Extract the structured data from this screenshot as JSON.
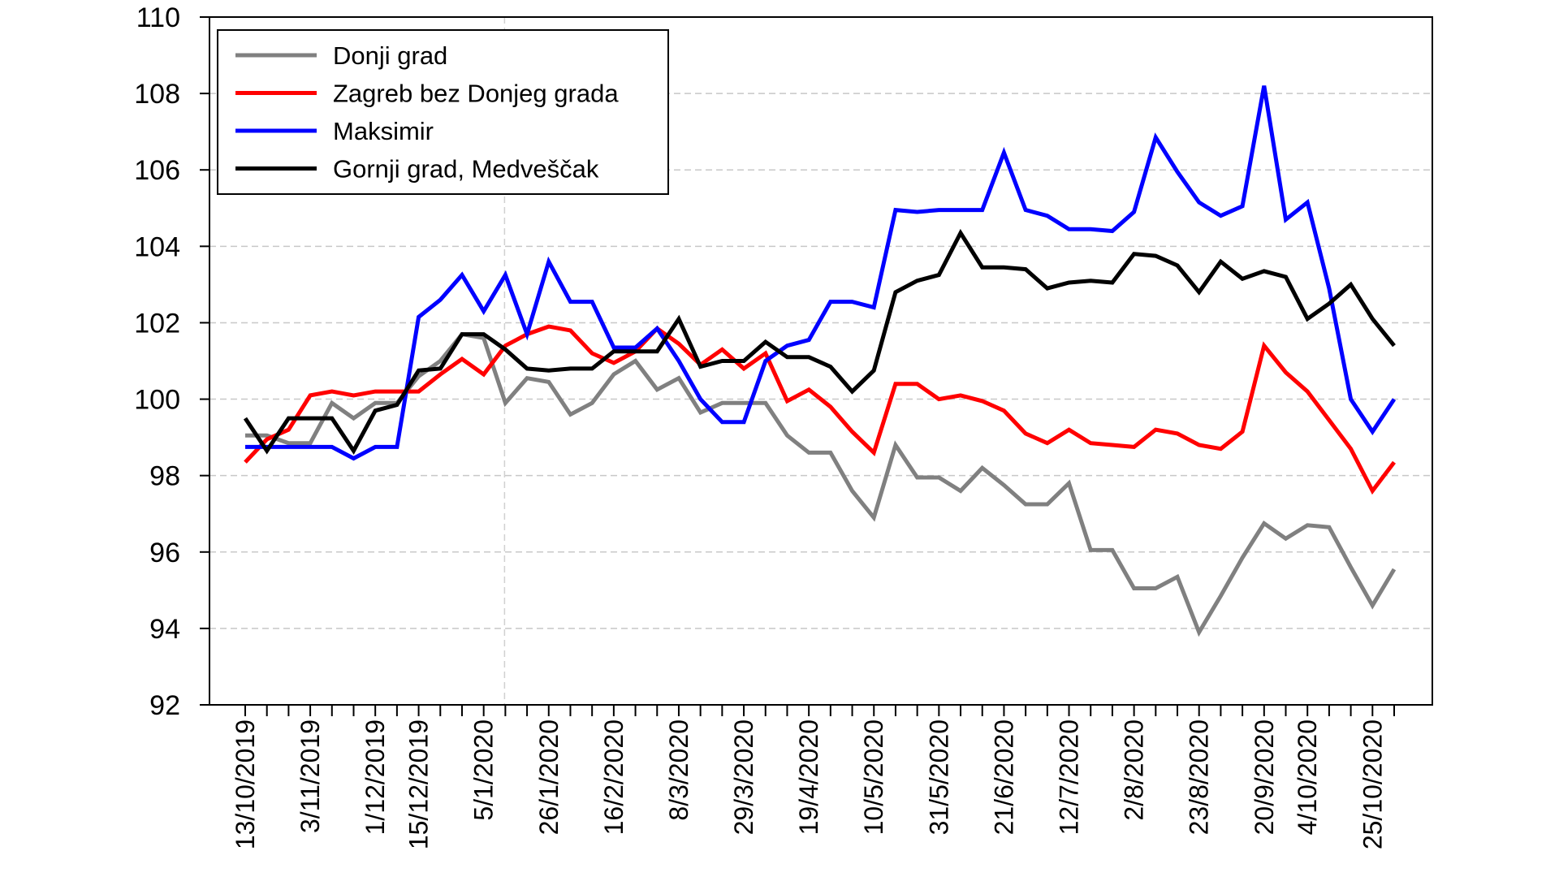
{
  "chart_data": {
    "type": "line",
    "title": "",
    "xlabel": "",
    "ylabel": "",
    "ylim": [
      92,
      110
    ],
    "yticks": [
      92,
      94,
      96,
      98,
      100,
      102,
      104,
      106,
      108,
      110
    ],
    "grid": "horizontal dashed",
    "legend_position": "top-left",
    "n_points": 54,
    "x_tick_labels": [
      {
        "index": 0,
        "label": "13/10/2019"
      },
      {
        "index": 3,
        "label": "3/11/2019"
      },
      {
        "index": 6,
        "label": "1/12/2019"
      },
      {
        "index": 8,
        "label": "15/12/2019"
      },
      {
        "index": 11,
        "label": "5/1/2020"
      },
      {
        "index": 14,
        "label": "26/1/2020"
      },
      {
        "index": 17,
        "label": "16/2/2020"
      },
      {
        "index": 20,
        "label": "8/3/2020"
      },
      {
        "index": 23,
        "label": "29/3/2020"
      },
      {
        "index": 26,
        "label": "19/4/2020"
      },
      {
        "index": 29,
        "label": "10/5/2020"
      },
      {
        "index": 32,
        "label": "31/5/2020"
      },
      {
        "index": 35,
        "label": "21/6/2020"
      },
      {
        "index": 38,
        "label": "12/7/2020"
      },
      {
        "index": 41,
        "label": "2/8/2020"
      },
      {
        "index": 44,
        "label": "23/8/2020"
      },
      {
        "index": 47,
        "label": "20/9/2020"
      },
      {
        "index": 49,
        "label": "4/10/2020"
      },
      {
        "index": 52,
        "label": "25/10/2020"
      }
    ],
    "series": [
      {
        "name": "Donji grad",
        "color": "#808080",
        "values": [
          99.05,
          99.05,
          98.85,
          98.85,
          99.9,
          99.5,
          99.9,
          99.9,
          100.6,
          101.0,
          101.7,
          101.6,
          99.9,
          100.55,
          100.45,
          99.6,
          99.9,
          100.65,
          101.0,
          100.25,
          100.55,
          99.65,
          99.9,
          99.9,
          99.9,
          99.05,
          98.6,
          98.6,
          97.6,
          96.9,
          98.8,
          97.95,
          97.95,
          97.6,
          98.2,
          97.75,
          97.25,
          97.25,
          97.8,
          96.05,
          96.05,
          95.05,
          95.05,
          95.35,
          93.9,
          94.85,
          95.85,
          96.75,
          96.35,
          96.7,
          96.65,
          95.6,
          94.6,
          95.55
        ]
      },
      {
        "name": "Zagreb bez Donjeg grada",
        "color": "#ff0000",
        "values": [
          98.35,
          98.95,
          99.2,
          100.1,
          100.2,
          100.1,
          100.2,
          100.2,
          100.2,
          100.65,
          101.05,
          100.65,
          101.4,
          101.7,
          101.9,
          101.8,
          101.2,
          100.95,
          101.25,
          101.85,
          101.45,
          100.9,
          101.3,
          100.8,
          101.2,
          99.95,
          100.25,
          99.8,
          99.15,
          98.6,
          100.4,
          100.4,
          100.0,
          100.1,
          99.95,
          99.7,
          99.1,
          98.85,
          99.2,
          98.85,
          98.8,
          98.75,
          99.2,
          99.1,
          98.8,
          98.7,
          99.15,
          101.4,
          100.7,
          100.2,
          99.45,
          98.7,
          97.6,
          98.35
        ]
      },
      {
        "name": "Maksimir",
        "color": "#0000ff",
        "values": [
          98.75,
          98.75,
          98.75,
          98.75,
          98.75,
          98.45,
          98.75,
          98.75,
          102.15,
          102.6,
          103.25,
          102.3,
          103.25,
          101.7,
          103.6,
          102.55,
          102.55,
          101.35,
          101.35,
          101.85,
          101.0,
          100.0,
          99.4,
          99.4,
          101.0,
          101.4,
          101.55,
          102.55,
          102.55,
          102.4,
          104.95,
          104.9,
          104.95,
          104.95,
          104.95,
          106.45,
          104.95,
          104.8,
          104.45,
          104.45,
          104.4,
          104.9,
          106.85,
          105.95,
          105.15,
          104.8,
          105.05,
          108.2,
          104.7,
          105.15,
          102.9,
          100.0,
          99.15,
          100.0
        ]
      },
      {
        "name": "Gornji grad, Medveščak",
        "color": "#000000",
        "values": [
          99.5,
          98.65,
          99.5,
          99.5,
          99.5,
          98.65,
          99.7,
          99.85,
          100.75,
          100.8,
          101.7,
          101.7,
          101.3,
          100.8,
          100.75,
          100.8,
          100.8,
          101.25,
          101.25,
          101.25,
          102.1,
          100.85,
          101.0,
          101.0,
          101.5,
          101.1,
          101.1,
          100.85,
          100.2,
          100.75,
          102.8,
          103.1,
          103.25,
          104.35,
          103.45,
          103.45,
          103.4,
          102.9,
          103.05,
          103.1,
          103.05,
          103.8,
          103.75,
          103.5,
          102.8,
          103.6,
          103.15,
          103.35,
          103.2,
          102.1,
          102.5,
          103.0,
          102.1,
          101.4
        ]
      }
    ]
  }
}
